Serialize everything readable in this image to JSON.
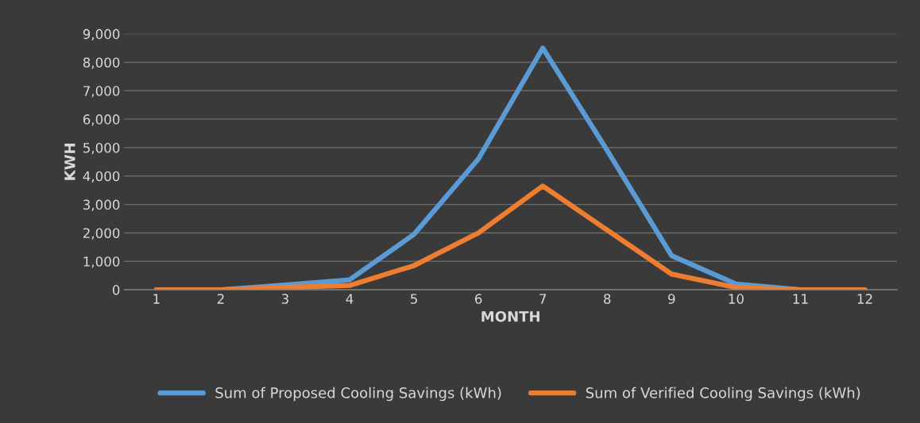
{
  "chart_data": {
    "type": "line",
    "xlabel": "MONTH",
    "ylabel": "KWH",
    "categories": [
      "1",
      "2",
      "3",
      "4",
      "5",
      "6",
      "7",
      "8",
      "9",
      "10",
      "11",
      "12"
    ],
    "series": [
      {
        "name": "Sum of Proposed Cooling Savings (kWh)",
        "color": "#5b9bd5",
        "values": [
          0,
          0,
          170,
          350,
          1950,
          4600,
          8500,
          4900,
          1200,
          200,
          0,
          0
        ]
      },
      {
        "name": "Sum of Verified Cooling Savings (kWh)",
        "color": "#ed7d31",
        "values": [
          0,
          0,
          80,
          150,
          850,
          2000,
          3650,
          2100,
          550,
          80,
          0,
          0
        ]
      }
    ],
    "ylim": [
      0,
      9000
    ],
    "yticks": [
      {
        "value": 0,
        "label": "0"
      },
      {
        "value": 1000,
        "label": "1,000"
      },
      {
        "value": 2000,
        "label": "2,000"
      },
      {
        "value": 3000,
        "label": "3,000"
      },
      {
        "value": 4000,
        "label": "4,000"
      },
      {
        "value": 5000,
        "label": "5,000"
      },
      {
        "value": 6000,
        "label": "6,000"
      },
      {
        "value": 7000,
        "label": "7,000"
      },
      {
        "value": 8000,
        "label": "8,000"
      },
      {
        "value": 9000,
        "label": "9,000"
      }
    ],
    "grid": "y",
    "legend": "bottom",
    "marker": "none",
    "line_style": "solid"
  }
}
